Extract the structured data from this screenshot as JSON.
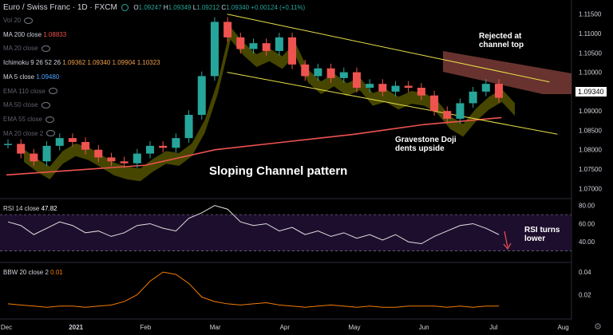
{
  "title": {
    "symbol": "Euro / Swiss Franc",
    "interval": "1D",
    "source": "FXCM"
  },
  "ohlc": {
    "o_label": "O",
    "o": "1.09247",
    "h_label": "H",
    "h": "1.09349",
    "l_label": "L",
    "l": "1.09212",
    "c_label": "C",
    "c": "1.09340",
    "change": "+0.00124 (+0.11%)"
  },
  "indicators": [
    {
      "name": "Vol 20",
      "value": "",
      "color": "#787b86",
      "hidden": true
    },
    {
      "name": "MA 200 close",
      "value": "1.08833",
      "color": "#ef5350",
      "hidden": false
    },
    {
      "name": "MA 20 close",
      "value": "",
      "color": "#787b86",
      "hidden": true
    },
    {
      "name": "Ichimoku 9 26 52 26",
      "value": "1.09362  1.09340  1.09904  1.10323",
      "color": "#f0a04b",
      "hidden": false
    },
    {
      "name": "MA 5 close",
      "value": "1.09480",
      "color": "#4aa3ff",
      "hidden": false
    },
    {
      "name": "EMA 110 close",
      "value": "",
      "color": "#787b86",
      "hidden": true
    },
    {
      "name": "MA 50 close",
      "value": "",
      "color": "#787b86",
      "hidden": true
    },
    {
      "name": "EMA 55 close",
      "value": "",
      "color": "#787b86",
      "hidden": true
    },
    {
      "name": "MA 20 close 2",
      "value": "",
      "color": "#787b86",
      "hidden": true
    }
  ],
  "annotations": {
    "rejected": [
      "Rejected at",
      "channel top"
    ],
    "gravestone": [
      "Gravestone Doji",
      "dents upside"
    ],
    "pattern": "Sloping Channel pattern",
    "rsi_turn": [
      "RSI turns",
      "lower"
    ]
  },
  "rsi_label": {
    "name": "RSI 14 close",
    "value": "47.82"
  },
  "bbw_label": {
    "name": "BBW 20 close 2",
    "value": "0.01"
  },
  "price_axis": [
    "1.11500",
    "1.11000",
    "1.10500",
    "1.10000",
    "1.09500",
    "1.09000",
    "1.08500",
    "1.08000",
    "1.07500",
    "1.07000"
  ],
  "current_price": "1.09340",
  "rsi_axis": [
    "80.00",
    "60.00",
    "40.00"
  ],
  "bbw_axis": [
    "0.04",
    "0.02"
  ],
  "time_axis": [
    "Dec",
    "2021",
    "Feb",
    "Mar",
    "Apr",
    "May",
    "Jun",
    "Jul",
    "Aug"
  ],
  "colors": {
    "up": "#26a69a",
    "down": "#ef5350",
    "background": "#000000",
    "channel": "#e8e04a",
    "cloud_bull": "#808000",
    "cloud_bear": "#7a3c36",
    "ma200": "#ef5350"
  },
  "chart_data": {
    "type": "line",
    "title": "Euro / Swiss Franc",
    "x": [
      "Dec",
      "2021",
      "Feb",
      "Mar",
      "Apr",
      "May",
      "Jun",
      "Jul",
      "Aug"
    ],
    "ylim": [
      1.068,
      1.117
    ],
    "close_series": [
      {
        "t": "Dec",
        "v": 1.0815
      },
      {
        "t": "Dec",
        "v": 1.079
      },
      {
        "t": "Dec",
        "v": 1.077
      },
      {
        "t": "Dec",
        "v": 1.081
      },
      {
        "t": "Dec",
        "v": 1.083
      },
      {
        "t": "2021",
        "v": 1.082
      },
      {
        "t": "2021",
        "v": 1.08
      },
      {
        "t": "2021",
        "v": 1.078
      },
      {
        "t": "2021",
        "v": 1.077
      },
      {
        "t": "2021",
        "v": 1.0765
      },
      {
        "t": "Feb",
        "v": 1.079
      },
      {
        "t": "Feb",
        "v": 1.081
      },
      {
        "t": "Feb",
        "v": 1.0805
      },
      {
        "t": "Feb",
        "v": 1.083
      },
      {
        "t": "Feb",
        "v": 1.089
      },
      {
        "t": "Feb",
        "v": 1.099
      },
      {
        "t": "Mar",
        "v": 1.113
      },
      {
        "t": "Mar",
        "v": 1.109
      },
      {
        "t": "Mar",
        "v": 1.106
      },
      {
        "t": "Mar",
        "v": 1.1075
      },
      {
        "t": "Mar",
        "v": 1.1055
      },
      {
        "t": "Apr",
        "v": 1.109
      },
      {
        "t": "Apr",
        "v": 1.102
      },
      {
        "t": "Apr",
        "v": 1.099
      },
      {
        "t": "Apr",
        "v": 1.101
      },
      {
        "t": "Apr",
        "v": 1.0985
      },
      {
        "t": "May",
        "v": 1.1
      },
      {
        "t": "May",
        "v": 1.096
      },
      {
        "t": "May",
        "v": 1.097
      },
      {
        "t": "May",
        "v": 1.095
      },
      {
        "t": "May",
        "v": 1.0965
      },
      {
        "t": "Jun",
        "v": 1.096
      },
      {
        "t": "Jun",
        "v": 1.094
      },
      {
        "t": "Jun",
        "v": 1.09
      },
      {
        "t": "Jun",
        "v": 1.088
      },
      {
        "t": "Jun",
        "v": 1.092
      },
      {
        "t": "Jun",
        "v": 1.095
      },
      {
        "t": "Jul",
        "v": 1.097
      },
      {
        "t": "Jul",
        "v": 1.0934
      }
    ],
    "ma200": [
      {
        "t": "Dec",
        "v": 1.0735
      },
      {
        "t": "Feb",
        "v": 1.076
      },
      {
        "t": "Mar",
        "v": 1.08
      },
      {
        "t": "Apr",
        "v": 1.082
      },
      {
        "t": "May",
        "v": 1.084
      },
      {
        "t": "Jun",
        "v": 1.0865
      },
      {
        "t": "Jul",
        "v": 1.0883
      }
    ],
    "channel": {
      "upper": [
        {
          "t": "Mar",
          "v": 1.115
        },
        {
          "t": "Jul",
          "v": 1.0975
        }
      ],
      "lower": [
        {
          "t": "Mar",
          "v": 1.1
        },
        {
          "t": "Jul",
          "v": 1.084
        }
      ]
    },
    "rsi": {
      "name": "RSI 14 close",
      "last": 47.82,
      "range": [
        20,
        85
      ],
      "values": [
        62,
        58,
        48,
        55,
        62,
        58,
        50,
        52,
        46,
        50,
        58,
        60,
        55,
        52,
        66,
        72,
        80,
        76,
        62,
        58,
        60,
        52,
        56,
        48,
        52,
        46,
        50,
        44,
        48,
        42,
        48,
        40,
        38,
        46,
        52,
        58,
        60,
        55,
        48
      ]
    },
    "bbw": {
      "name": "BBW 20 close 2",
      "last": 0.01,
      "range": [
        0,
        0.045
      ],
      "values": [
        0.012,
        0.011,
        0.01,
        0.009,
        0.01,
        0.01,
        0.009,
        0.01,
        0.011,
        0.014,
        0.02,
        0.032,
        0.04,
        0.038,
        0.03,
        0.018,
        0.014,
        0.012,
        0.011,
        0.012,
        0.013,
        0.011,
        0.01,
        0.009,
        0.01,
        0.011,
        0.01,
        0.009,
        0.01,
        0.009,
        0.009,
        0.01,
        0.01,
        0.01,
        0.009,
        0.01,
        0.009,
        0.01,
        0.01
      ]
    }
  }
}
